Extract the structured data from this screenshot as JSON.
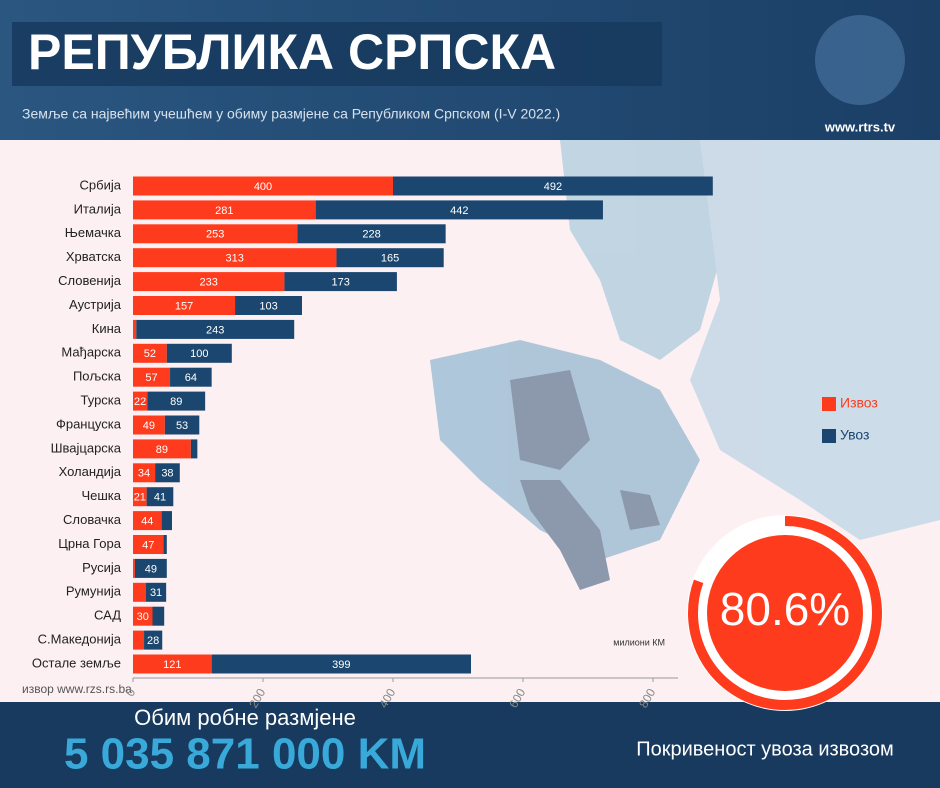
{
  "chart_data": {
    "type": "stacked-barh",
    "categories": [
      "Србија",
      "Италија",
      "Њемачка",
      "Хрватска",
      "Словенија",
      "Аустрија",
      "Кина",
      "Мађарска",
      "Пољска",
      "Турска",
      "Француска",
      "Швајцарска",
      "Холандија",
      "Чешка",
      "Словачка",
      "Црна Гора",
      "Русија",
      "Румунија",
      "САД",
      "С.Македонија",
      "Остале земље"
    ],
    "series": [
      {
        "name": "Извоз",
        "color": "#ff3b1d",
        "values": [
          400,
          281,
          253,
          313,
          233,
          157,
          5,
          52,
          57,
          22,
          49,
          89,
          34,
          21,
          44,
          47,
          3,
          20,
          30,
          17,
          121
        ],
        "value_labels": [
          "400",
          "281",
          "253",
          "313",
          "233",
          "157",
          null,
          "52",
          "57",
          "22",
          "49",
          "89",
          "34",
          "21",
          "44",
          "47",
          null,
          null,
          "30",
          null,
          "121"
        ]
      },
      {
        "name": "Увоз",
        "color": "#1b466f",
        "values": [
          492,
          442,
          228,
          165,
          173,
          103,
          243,
          100,
          64,
          89,
          53,
          10,
          38,
          41,
          16,
          5,
          49,
          31,
          18,
          28,
          399
        ],
        "value_labels": [
          "492",
          "442",
          "228",
          "165",
          "173",
          "103",
          "243",
          "100",
          "64",
          "89",
          "53",
          null,
          "38",
          "41",
          null,
          null,
          "49",
          "31",
          null,
          "28",
          "399"
        ]
      }
    ],
    "xlim": [
      0,
      800
    ],
    "xticks": [
      0,
      200,
      400,
      600,
      800
    ],
    "unit": "милиони КМ"
  },
  "header": {
    "title": "РЕПУБЛИКА СРПСКА",
    "subtitle": "Земље са највећим учешћем у обиму размјене са Републиком Српском (I-V 2022.)",
    "site": "www.rtrs.tv"
  },
  "footer": {
    "source": "извор www.rzs.rs.ba",
    "volume_label": "Обим робне размјене",
    "volume_value": "5 035 871 000 KM"
  },
  "coverage": {
    "value": 80.6,
    "value_label": "80.6%",
    "label": "Покривеност увоза извозом"
  }
}
